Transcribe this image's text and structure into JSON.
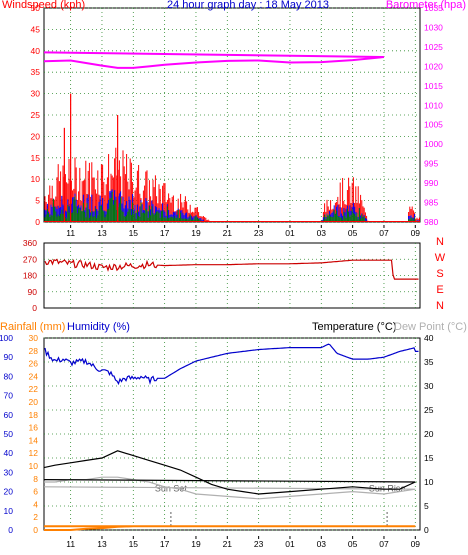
{
  "chart_data": [
    {
      "type": "line",
      "panel": "wind-pressure",
      "title": "24 hour graph day : 18 May 2013",
      "left_label": "Windspeed (kph)",
      "right_label": "Barometer (hpa)",
      "x_ticks": [
        "11",
        "13",
        "15",
        "17",
        "19",
        "21",
        "23",
        "01",
        "03",
        "05",
        "07",
        "09"
      ],
      "y_left_ticks": [
        "0",
        "5",
        "10",
        "15",
        "20",
        "25",
        "30",
        "35",
        "40",
        "45",
        "50"
      ],
      "y_left_range": [
        0,
        50
      ],
      "y_right_ticks": [
        "980",
        "985",
        "990",
        "995",
        "1000",
        "1005",
        "1010",
        "1015",
        "1020",
        "1025",
        "1030",
        "1035"
      ],
      "y_right_range": [
        980,
        1035
      ],
      "grid": true,
      "colors": {
        "gust": "#ff0000",
        "avg": "#0000ff",
        "speed": "#008000",
        "pressure": "#ff00ff"
      },
      "barometer": {
        "x": [
          9.3,
          11,
          13,
          14,
          15,
          16,
          17,
          19,
          21,
          23,
          1,
          3,
          5,
          7,
          9.3
        ],
        "y": [
          1021.3,
          1021.5,
          1020.2,
          1019.6,
          1019.6,
          1020.0,
          1020.4,
          1021.0,
          1021.4,
          1021.5,
          1021.0,
          1021.1,
          1021.6,
          1022.4,
          1023.6
        ]
      },
      "gust_envelope": {
        "x": [
          9.3,
          10,
          11,
          12,
          13,
          14,
          15,
          16,
          17,
          18,
          19,
          19.3,
          20,
          2,
          3,
          3.2,
          4,
          5,
          5.5,
          6,
          8.5,
          8.6,
          9,
          9.3
        ],
        "y": [
          8,
          12,
          14,
          14,
          15,
          16,
          14,
          11,
          9,
          6,
          5,
          2,
          0,
          0,
          0,
          4,
          9,
          10,
          7,
          0,
          0,
          7,
          5,
          1
        ]
      },
      "gust_peaks": [
        {
          "x": 11.0,
          "y": 30
        },
        {
          "x": 14.0,
          "y": 25
        },
        {
          "x": 10.6,
          "y": 22
        }
      ]
    },
    {
      "type": "line",
      "panel": "wind-direction",
      "y_left_ticks": [
        "360",
        "270",
        "180",
        "90",
        "0"
      ],
      "y_range": [
        0,
        360
      ],
      "right_labels": [
        "N",
        "W",
        "S",
        "E",
        "N"
      ],
      "colors": {
        "direction": "#cc0000"
      },
      "direction": {
        "x": [
          9.3,
          10,
          11,
          12,
          13,
          14,
          15,
          16,
          17,
          19,
          21,
          23,
          1,
          3,
          5,
          7,
          7.5,
          7.6,
          9.3
        ],
        "y": [
          260,
          255,
          245,
          240,
          225,
          230,
          235,
          240,
          235,
          240,
          240,
          245,
          245,
          250,
          265,
          265,
          265,
          160,
          160
        ]
      }
    },
    {
      "type": "line",
      "panel": "temp-humidity-rain",
      "rainfall_label": "Rainfall (mm)",
      "humidity_label": "Humidity (%)",
      "temperature_label": "Temperature (°C)",
      "dewpoint_label": "Dew Point (°C)",
      "y_humidity_ticks": [
        "0",
        "10",
        "20",
        "30",
        "40",
        "50",
        "60",
        "70",
        "80",
        "90",
        "100"
      ],
      "y_rain_ticks": [
        "0",
        "2",
        "4",
        "6",
        "8",
        "10",
        "12",
        "14",
        "16",
        "18",
        "20",
        "22",
        "24",
        "26",
        "28",
        "30"
      ],
      "y_temp_ticks": [
        "0",
        "5",
        "10",
        "15",
        "20",
        "25",
        "30",
        "35",
        "40"
      ],
      "temp_range": [
        0,
        40
      ],
      "humidity_range": [
        0,
        100
      ],
      "rain_range": [
        0,
        30
      ],
      "colors": {
        "humidity": "#0000cc",
        "temperature": "#000000",
        "dewpoint": "#b0b0b0",
        "rain": "#ff8000",
        "sunmark": "#606060"
      },
      "humidity": {
        "x": [
          9.3,
          9.5,
          10,
          10.5,
          11,
          12,
          12.5,
          13,
          13.5,
          14,
          14.5,
          15,
          15.5,
          16,
          16.5,
          17,
          18,
          19,
          20,
          21,
          23,
          1,
          3,
          3.5,
          4,
          5,
          6,
          7,
          8,
          9,
          9.3
        ],
        "y": [
          94,
          92,
          88,
          89,
          87,
          88,
          85,
          83,
          82,
          77,
          79,
          79,
          80,
          78,
          79,
          79,
          84,
          88,
          90,
          92,
          94,
          95,
          95,
          97,
          92,
          89,
          89,
          90,
          93,
          95,
          93
        ]
      },
      "temperature": {
        "x": [
          9.3,
          10,
          11,
          12,
          13,
          14,
          15,
          16,
          17,
          18,
          19,
          20,
          21,
          22,
          23,
          1,
          3,
          5,
          7,
          8,
          9,
          9.3
        ],
        "y": [
          13,
          13.5,
          14,
          14.5,
          15,
          16.5,
          15.5,
          14.5,
          13.5,
          12.5,
          11,
          9.5,
          8.5,
          8,
          7.5,
          8,
          8.5,
          9,
          8.5,
          8.5,
          10,
          10.5
        ]
      },
      "dewpoint": {
        "x": [
          9.3,
          10,
          11,
          12,
          13,
          14,
          15,
          16,
          17,
          18,
          19,
          21,
          23,
          1,
          3,
          5,
          7,
          9,
          9.3
        ],
        "y": [
          10,
          10,
          10.5,
          10.5,
          11,
          11,
          10.5,
          10,
          9,
          8.5,
          7.5,
          7,
          6.5,
          7,
          7.5,
          8,
          7.5,
          8.5,
          9
        ]
      },
      "rain": {
        "x": [
          9.3,
          11,
          12,
          13,
          14,
          15,
          16,
          17,
          19,
          21,
          23,
          1,
          3,
          5,
          7,
          9,
          9.3
        ],
        "y": [
          0,
          0,
          0.2,
          0.3,
          0.5,
          0.6,
          0.6,
          0.6,
          0.6,
          0.6,
          0.6,
          0.6,
          0.6,
          0.6,
          0.6,
          0.6,
          0.6
        ]
      },
      "sunset": {
        "label": "Sun Set",
        "x": 17.4
      },
      "sunrise": {
        "label": "Sun Rise",
        "x": 7.2
      }
    }
  ]
}
